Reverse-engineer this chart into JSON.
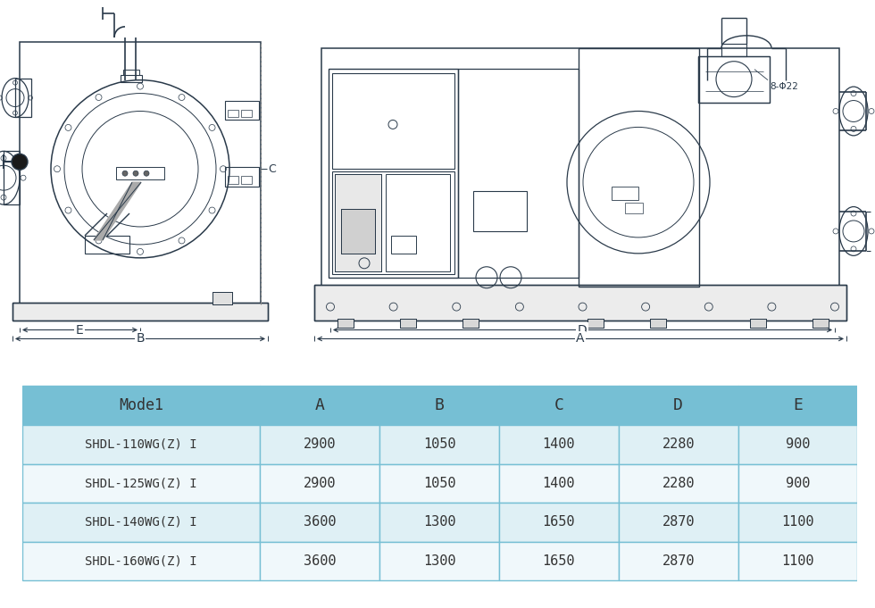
{
  "table_headers": [
    "Mode1",
    "A",
    "B",
    "C",
    "D",
    "E"
  ],
  "table_rows": [
    [
      "SHDL-110WG(Z) I",
      "2900",
      "1050",
      "1400",
      "2280",
      "900"
    ],
    [
      "SHDL-125WG(Z) I",
      "2900",
      "1050",
      "1400",
      "2280",
      "900"
    ],
    [
      "SHDL-140WG(Z) I",
      "3600",
      "1300",
      "1650",
      "2870",
      "1100"
    ],
    [
      "SHDL-160WG(Z) I",
      "3600",
      "1300",
      "1650",
      "2870",
      "1100"
    ]
  ],
  "header_bg": "#76bfd4",
  "row_bg_alt": "#dff0f5",
  "row_bg_norm": "#f0f8fb",
  "border_color": "#76bfd4",
  "text_color": "#333333",
  "bg_color": "#ffffff",
  "lc": "#2a3a4a",
  "annotation_8phi22": "8-Φ22",
  "dim_labels": [
    "A",
    "B",
    "C",
    "D",
    "E"
  ]
}
